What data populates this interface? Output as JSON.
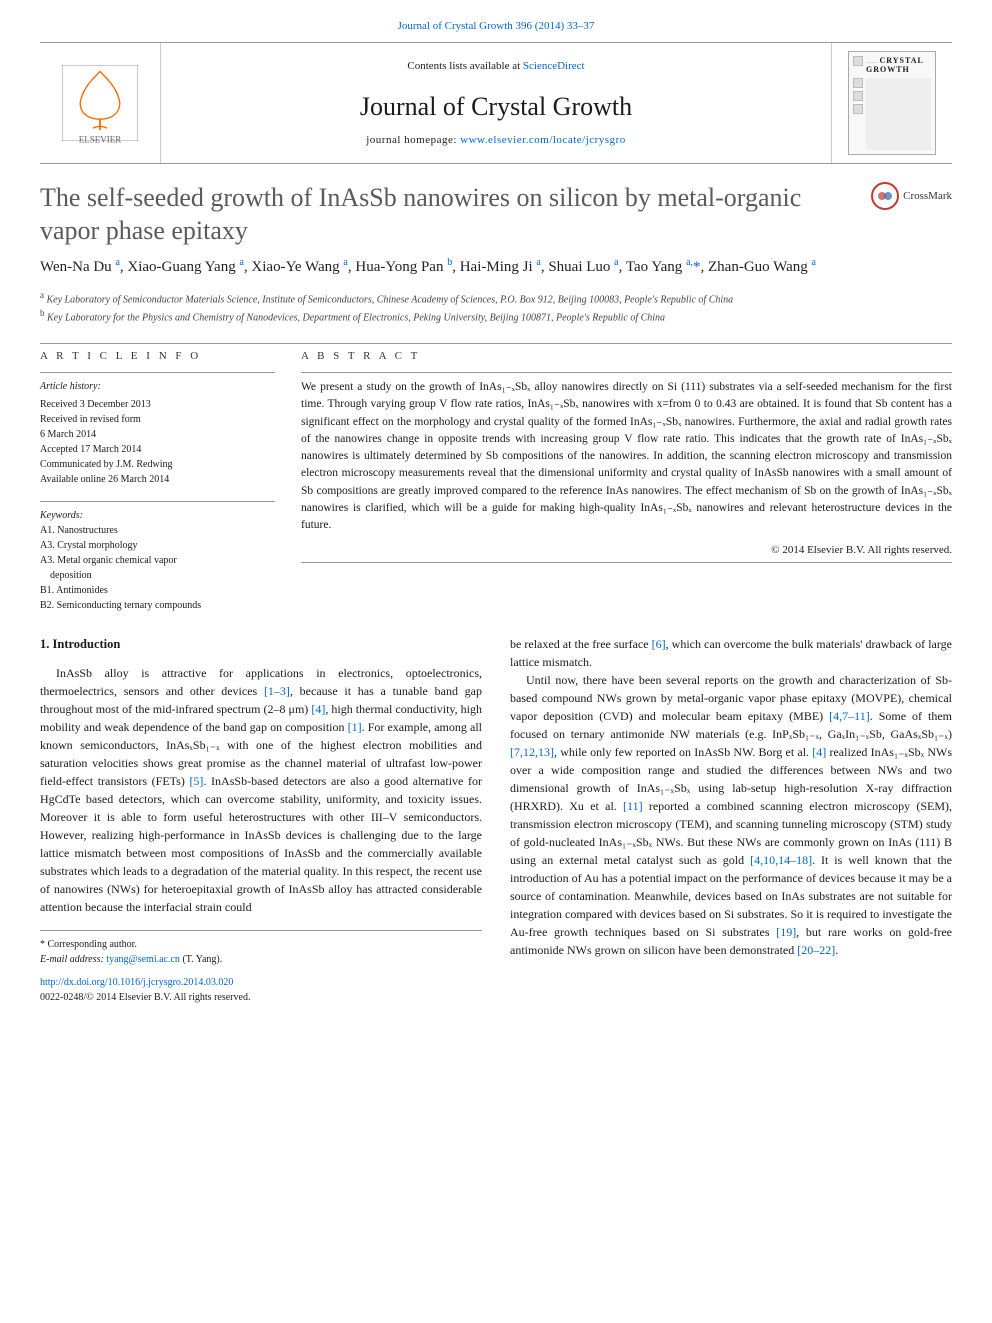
{
  "top_link": {
    "prefix": "",
    "journal": "Journal of Crystal Growth 396 (2014) 33–37"
  },
  "header": {
    "contents_prefix": "Contents lists available at ",
    "contents_link": "ScienceDirect",
    "journal_name": "Journal of Crystal Growth",
    "homepage_prefix": "journal homepage: ",
    "homepage_url": "www.elsevier.com/locate/jcrysgro",
    "cover_label_dots": "…… ",
    "cover_label": "CRYSTAL GROWTH"
  },
  "crossmark_label": "CrossMark",
  "title": "The self-seeded growth of InAsSb nanowires on silicon by metal-organic vapor phase epitaxy",
  "authors_html": "Wen-Na Du <sup>a</sup>, Xiao-Guang Yang <sup>a</sup>, Xiao-Ye Wang <sup>a</sup>, Hua-Yong Pan <sup>b</sup>, Hai-Ming Ji <sup>a</sup>, Shuai Luo <sup>a</sup>, Tao Yang <sup>a,</sup><span class='star'>*</span>, Zhan-Guo Wang <sup>a</sup>",
  "affiliations": {
    "a": "Key Laboratory of Semiconductor Materials Science, Institute of Semiconductors, Chinese Academy of Sciences, P.O. Box 912, Beijing 100083, People's Republic of China",
    "b": "Key Laboratory for the Physics and Chemistry of Nanodevices, Department of Electronics, Peking University, Beijing 100871, People's Republic of China"
  },
  "labels": {
    "article_info": "A R T I C L E  I N F O",
    "abstract": "A B S T R A C T"
  },
  "history": {
    "head": "Article history:",
    "lines": [
      "Received 3 December 2013",
      "Received in revised form",
      "6 March 2014",
      "Accepted 17 March 2014",
      "Communicated by J.M. Redwing",
      "Available online 26 March 2014"
    ]
  },
  "keywords": {
    "head": "Keywords:",
    "items": [
      "A1. Nanostructures",
      "A3. Crystal morphology",
      "A3. Metal organic chemical vapor",
      "    deposition",
      "B1. Antimonides",
      "B2. Semiconducting ternary compounds"
    ]
  },
  "abstract": "We present a study on the growth of InAs₁₋ₓSbₓ alloy nanowires directly on Si (111) substrates via a self-seeded mechanism for the first time. Through varying group V flow rate ratios, InAs₁₋ₓSbₓ nanowires with x=from 0 to 0.43 are obtained. It is found that Sb content has a significant effect on the morphology and crystal quality of the formed InAs₁₋ₓSbₓ nanowires. Furthermore, the axial and radial growth rates of the nanowires change in opposite trends with increasing group V flow rate ratio. This indicates that the growth rate of InAs₁₋ₓSbₓ nanowires is ultimately determined by Sb compositions of the nanowires. In addition, the scanning electron microscopy and transmission electron microscopy measurements reveal that the dimensional uniformity and crystal quality of InAsSb nanowires with a small amount of Sb compositions are greatly improved compared to the reference InAs nanowires. The effect mechanism of Sb on the growth of InAs₁₋ₓSbₓ nanowires is clarified, which will be a guide for making high-quality InAs₁₋ₓSbₓ nanowires and relevant heterostructure devices in the future.",
  "copyright": "© 2014 Elsevier B.V. All rights reserved.",
  "intro_heading": "1.  Introduction",
  "body": {
    "left_p1": "InAsSb alloy is attractive for applications in electronics, optoelectronics, thermoelectrics, sensors and other devices [1–3], because it has a tunable band gap throughout most of the mid-infrared spectrum (2–8 μm) [4], high thermal conductivity, high mobility and weak dependence of the band gap on composition [1]. For example, among all known semiconductors, InAsₓSb₁₋ₓ with one of the highest electron mobilities and saturation velocities shows great promise as the channel material of ultrafast low-power field-effect transistors (FETs) [5]. InAsSb-based detectors are also a good alternative for HgCdTe based detectors, which can overcome stability, uniformity, and toxicity issues. Moreover it is able to form useful heterostructures with other III–V semiconductors. However, realizing high-performance in InAsSb devices is challenging due to the large lattice mismatch between most compositions of InAsSb and the commercially available substrates which leads to a degradation of the material quality. In this respect, the recent use of nanowires (NWs) for heteroepitaxial growth of InAsSb alloy has attracted considerable attention because the interfacial strain could",
    "right_p1": "be relaxed at the free surface [6], which can overcome the bulk materials' drawback of large lattice mismatch.",
    "right_p2": "Until now, there have been several reports on the growth and characterization of Sb-based compound NWs grown by metal-organic vapor phase epitaxy (MOVPE), chemical vapor deposition (CVD) and molecular beam epitaxy (MBE) [4,7–11]. Some of them focused on ternary antimonide NW materials (e.g. InPₓSb₁₋ₓ, GaₓIn₁₋ₓSb, GaAsₓSb₁₋ₓ) [7,12,13], while only few reported on InAsSb NW. Borg et al. [4] realized InAs₁₋ₓSbₓ NWs over a wide composition range and studied the differences between NWs and two dimensional growth of InAs₁₋ₓSbₓ using lab-setup high-resolution X-ray diffraction (HRXRD). Xu et al. [11] reported a combined scanning electron microscopy (SEM), transmission electron microscopy (TEM), and scanning tunneling microscopy (STM) study of gold-nucleated InAs₁₋ₓSbₓ NWs. But these NWs are commonly grown on InAs (111) B using an external metal catalyst such as gold [4,10,14–18]. It is well known that the introduction of Au has a potential impact on the performance of devices because it may be a source of contamination. Meanwhile, devices based on InAs substrates are not suitable for integration compared with devices based on Si substrates. So it is required to investigate the Au-free growth techniques based on Si substrates [19], but rare works on gold-free antimonide NWs grown on silicon have been demonstrated [20–22]."
  },
  "footer": {
    "corr": "* Corresponding author.",
    "email_label": "E-mail address: ",
    "email": "tyang@semi.ac.cn",
    "email_name": " (T. Yang).",
    "doi": "http://dx.doi.org/10.1016/j.jcrysgro.2014.03.020",
    "issn": "0022-0248/© 2014 Elsevier B.V. All rights reserved."
  },
  "colors": {
    "link": "#0066cc",
    "title_gray": "#5a5a5a",
    "elsevier_orange": "#ff6b00",
    "crossmark_red": "#c0392b",
    "rule": "#999999"
  }
}
